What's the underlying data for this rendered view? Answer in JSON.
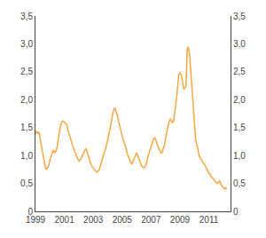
{
  "chart_data": {
    "type": "line",
    "x": [
      1999.0,
      1999.08,
      1999.17,
      1999.25,
      1999.33,
      1999.42,
      1999.5,
      1999.58,
      1999.67,
      1999.75,
      1999.83,
      1999.92,
      2000.0,
      2000.08,
      2000.17,
      2000.25,
      2000.33,
      2000.42,
      2000.5,
      2000.58,
      2000.67,
      2000.75,
      2000.83,
      2000.92,
      2001.0,
      2001.08,
      2001.17,
      2001.25,
      2001.33,
      2001.42,
      2001.5,
      2001.58,
      2001.67,
      2001.75,
      2001.83,
      2001.92,
      2002.0,
      2002.08,
      2002.17,
      2002.25,
      2002.33,
      2002.42,
      2002.5,
      2002.58,
      2002.67,
      2002.75,
      2002.83,
      2002.92,
      2003.0,
      2003.08,
      2003.17,
      2003.25,
      2003.33,
      2003.42,
      2003.5,
      2003.58,
      2003.67,
      2003.75,
      2003.83,
      2003.92,
      2004.0,
      2004.08,
      2004.17,
      2004.25,
      2004.33,
      2004.42,
      2004.5,
      2004.58,
      2004.67,
      2004.75,
      2004.83,
      2004.92,
      2005.0,
      2005.08,
      2005.17,
      2005.25,
      2005.33,
      2005.42,
      2005.5,
      2005.58,
      2005.67,
      2005.75,
      2005.83,
      2005.92,
      2006.0,
      2006.08,
      2006.17,
      2006.25,
      2006.33,
      2006.42,
      2006.5,
      2006.58,
      2006.67,
      2006.75,
      2006.83,
      2006.92,
      2007.0,
      2007.08,
      2007.17,
      2007.25,
      2007.33,
      2007.42,
      2007.5,
      2007.58,
      2007.67,
      2007.75,
      2007.83,
      2007.92,
      2008.0,
      2008.08,
      2008.17,
      2008.25,
      2008.33,
      2008.42,
      2008.5,
      2008.58,
      2008.67,
      2008.75,
      2008.83,
      2008.92,
      2009.0,
      2009.08,
      2009.17,
      2009.25,
      2009.33,
      2009.42,
      2009.5,
      2009.58,
      2009.67,
      2009.75,
      2009.83,
      2009.92,
      2010.0,
      2010.08,
      2010.17,
      2010.25,
      2010.33,
      2010.42,
      2010.5,
      2010.58,
      2010.67,
      2010.75,
      2010.83,
      2010.92,
      2011.0,
      2011.08,
      2011.17,
      2011.25,
      2011.33,
      2011.42,
      2011.5,
      2011.58,
      2011.67,
      2011.75,
      2011.83,
      2011.92,
      2012.0,
      2012.08,
      2012.17,
      2012.25
    ],
    "values": [
      1.38,
      1.44,
      1.4,
      1.42,
      1.3,
      1.15,
      1.05,
      0.92,
      0.8,
      0.75,
      0.78,
      0.82,
      0.92,
      1.0,
      1.05,
      1.1,
      1.05,
      1.08,
      1.15,
      1.3,
      1.45,
      1.55,
      1.6,
      1.62,
      1.6,
      1.58,
      1.55,
      1.45,
      1.38,
      1.3,
      1.22,
      1.15,
      1.1,
      1.05,
      1.0,
      0.95,
      0.9,
      0.92,
      0.95,
      1.0,
      1.05,
      1.1,
      1.12,
      1.05,
      1.0,
      0.92,
      0.85,
      0.8,
      0.78,
      0.75,
      0.72,
      0.7,
      0.72,
      0.75,
      0.82,
      0.9,
      1.0,
      1.05,
      1.1,
      1.18,
      1.28,
      1.38,
      1.48,
      1.6,
      1.72,
      1.82,
      1.85,
      1.8,
      1.72,
      1.62,
      1.52,
      1.42,
      1.35,
      1.28,
      1.22,
      1.15,
      1.05,
      0.98,
      0.92,
      0.88,
      0.85,
      0.9,
      0.95,
      1.0,
      1.05,
      1.0,
      0.95,
      0.88,
      0.82,
      0.8,
      0.78,
      0.8,
      0.85,
      0.95,
      1.02,
      1.1,
      1.18,
      1.25,
      1.3,
      1.32,
      1.28,
      1.2,
      1.15,
      1.08,
      1.05,
      1.05,
      1.1,
      1.18,
      1.3,
      1.42,
      1.52,
      1.6,
      1.65,
      1.62,
      1.58,
      1.65,
      1.8,
      2.0,
      2.2,
      2.45,
      2.48,
      2.45,
      2.35,
      2.2,
      2.2,
      2.25,
      2.9,
      2.95,
      2.8,
      2.5,
      2.2,
      1.85,
      1.5,
      1.3,
      1.2,
      1.1,
      1.0,
      0.95,
      0.9,
      0.88,
      0.85,
      0.82,
      0.78,
      0.72,
      0.68,
      0.65,
      0.62,
      0.6,
      0.58,
      0.55,
      0.52,
      0.5,
      0.52,
      0.55,
      0.48,
      0.45,
      0.42,
      0.4,
      0.42,
      0.4
    ],
    "color": "#F5A742",
    "xlim": [
      1999.0,
      2012.5
    ],
    "xticks": [
      1999,
      2001,
      2003,
      2005,
      2007,
      2009,
      2011
    ],
    "ylim": [
      0,
      3.5
    ],
    "yticks": [
      0,
      {
        "value": 0.5,
        "label": "0,5"
      },
      {
        "value": 1.0,
        "label": "1,0"
      },
      {
        "value": 1.5,
        "label": "1,5"
      },
      {
        "value": 2.0,
        "label": "2,0"
      },
      {
        "value": 2.5,
        "label": "2,5"
      },
      {
        "value": 3.0,
        "label": "3,0"
      },
      {
        "value": 3.5,
        "label": "3,5"
      }
    ],
    "y2lim": [
      0,
      3.5
    ],
    "y2ticks": [
      0,
      {
        "value": 0.5,
        "label": "0,5"
      },
      {
        "value": 1.0,
        "label": "1,0"
      },
      {
        "value": 1.5,
        "label": "1,5"
      },
      {
        "value": 2.0,
        "label": "2,0"
      },
      {
        "value": 2.5,
        "label": "2,5"
      },
      {
        "value": 3.0,
        "label": "3,0"
      },
      {
        "value": 3.5,
        "label": "3,5"
      }
    ],
    "grid": false
  }
}
